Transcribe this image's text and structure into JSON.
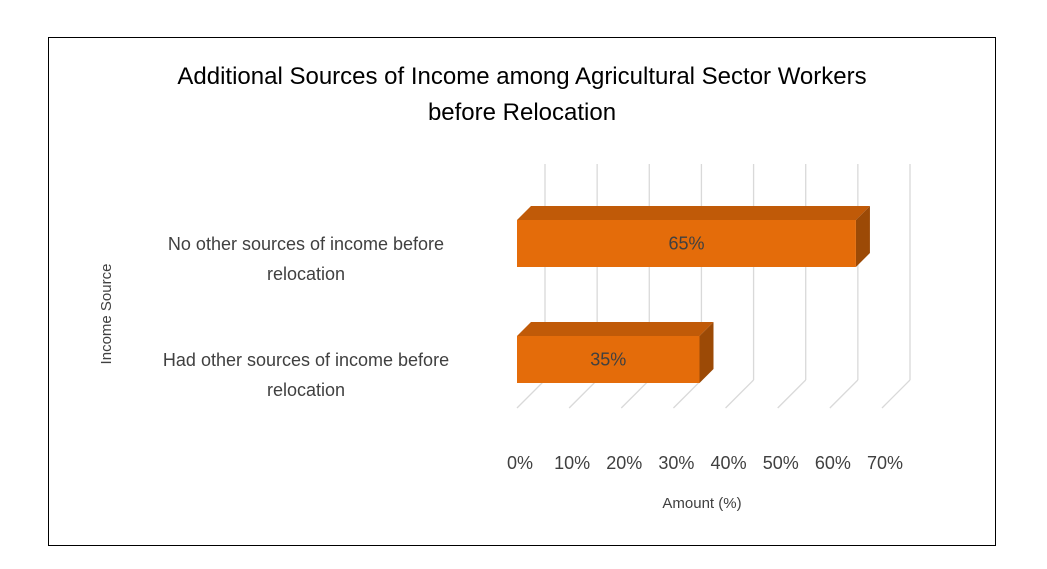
{
  "chart_data": {
    "type": "bar",
    "orientation": "horizontal",
    "style": "3d",
    "title": "Additional Sources of Income among Agricultural Sector Workers before Relocation",
    "title_lines": [
      "Additional Sources of Income among Agricultural Sector Workers",
      "before Relocation"
    ],
    "categories": [
      "No other sources of income before relocation",
      "Had other sources of income before relocation"
    ],
    "category_lines": [
      [
        "No other sources of income before",
        "relocation"
      ],
      [
        "Had other sources of income before",
        "relocation"
      ]
    ],
    "values": [
      65,
      35
    ],
    "data_labels": [
      "65%",
      "35%"
    ],
    "xlabel": "Amount (%)",
    "ylabel": "Income Source",
    "xlim": [
      0,
      70
    ],
    "xticks": [
      "0%",
      "10%",
      "20%",
      "30%",
      "40%",
      "50%",
      "60%",
      "70%"
    ],
    "grid": true,
    "legend": "none",
    "colors": {
      "bar_front": "#E46C0A",
      "bar_top": "#C05A08",
      "bar_side": "#9C4A06",
      "grid": "#D9D9D9",
      "text": "#404040"
    }
  }
}
